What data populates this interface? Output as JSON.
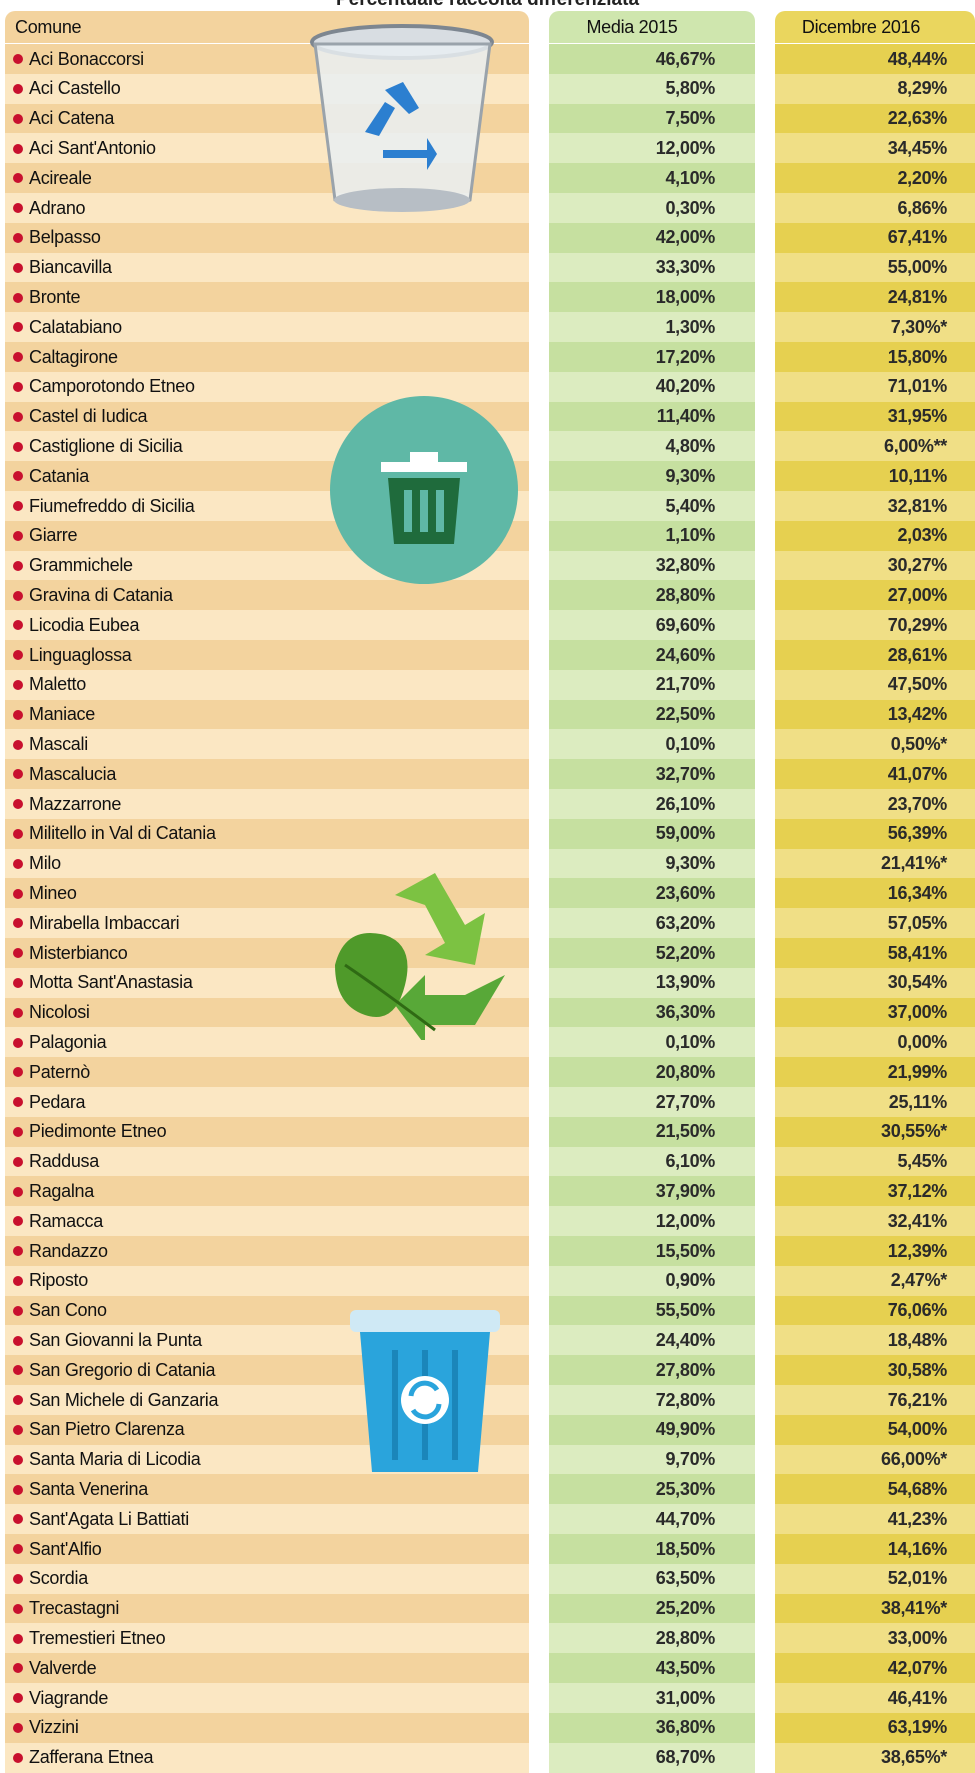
{
  "title": "Percentuale raccolta differenziata",
  "table": {
    "header": [
      "Comune",
      "Media 2015",
      "Dicembre 2016"
    ],
    "rows": [
      [
        "Aci Bonaccorsi",
        "46,67%",
        "48,44%"
      ],
      [
        "Aci Castello",
        "5,80%",
        "8,29%"
      ],
      [
        "Aci Catena",
        "7,50%",
        "22,63%"
      ],
      [
        "Aci Sant'Antonio",
        "12,00%",
        "34,45%"
      ],
      [
        "Acireale",
        "4,10%",
        "2,20%"
      ],
      [
        "Adrano",
        "0,30%",
        "6,86%"
      ],
      [
        "Belpasso",
        "42,00%",
        "67,41%"
      ],
      [
        "Biancavilla",
        "33,30%",
        "55,00%"
      ],
      [
        "Bronte",
        "18,00%",
        "24,81%"
      ],
      [
        "Calatabiano",
        "1,30%",
        "7,30%*"
      ],
      [
        "Caltagirone",
        "17,20%",
        "15,80%"
      ],
      [
        "Camporotondo Etneo",
        "40,20%",
        "71,01%"
      ],
      [
        "Castel di Iudica",
        "11,40%",
        "31,95%"
      ],
      [
        "Castiglione di Sicilia",
        "4,80%",
        "6,00%**"
      ],
      [
        "Catania",
        "9,30%",
        "10,11%"
      ],
      [
        "Fiumefreddo di Sicilia",
        "5,40%",
        "32,81%"
      ],
      [
        "Giarre",
        "1,10%",
        "2,03%"
      ],
      [
        "Grammichele",
        "32,80%",
        "30,27%"
      ],
      [
        "Gravina di Catania",
        "28,80%",
        "27,00%"
      ],
      [
        "Licodia Eubea",
        "69,60%",
        "70,29%"
      ],
      [
        "Linguaglossa",
        "24,60%",
        "28,61%"
      ],
      [
        "Maletto",
        "21,70%",
        "47,50%"
      ],
      [
        "Maniace",
        "22,50%",
        "13,42%"
      ],
      [
        "Mascali",
        "0,10%",
        "0,50%*"
      ],
      [
        "Mascalucia",
        "32,70%",
        "41,07%"
      ],
      [
        "Mazzarrone",
        "26,10%",
        "23,70%"
      ],
      [
        "Militello in Val di Catania",
        "59,00%",
        "56,39%"
      ],
      [
        "Milo",
        "9,30%",
        "21,41%*"
      ],
      [
        "Mineo",
        "23,60%",
        "16,34%"
      ],
      [
        "Mirabella Imbaccari",
        "63,20%",
        "57,05%"
      ],
      [
        "Misterbianco",
        "52,20%",
        "58,41%"
      ],
      [
        "Motta Sant'Anastasia",
        "13,90%",
        "30,54%"
      ],
      [
        "Nicolosi",
        "36,30%",
        "37,00%"
      ],
      [
        "Palagonia",
        "0,10%",
        "0,00%"
      ],
      [
        "Paternò",
        "20,80%",
        "21,99%"
      ],
      [
        "Pedara",
        "27,70%",
        "25,11%"
      ],
      [
        "Piedimonte Etneo",
        "21,50%",
        "30,55%*"
      ],
      [
        "Raddusa",
        "6,10%",
        "5,45%"
      ],
      [
        "Ragalna",
        "37,90%",
        "37,12%"
      ],
      [
        "Ramacca",
        "12,00%",
        "32,41%"
      ],
      [
        "Randazzo",
        "15,50%",
        "12,39%"
      ],
      [
        "Riposto",
        "0,90%",
        "2,47%*"
      ],
      [
        "San Cono",
        "55,50%",
        "76,06%"
      ],
      [
        "San Giovanni la Punta",
        "24,40%",
        "18,48%"
      ],
      [
        "San Gregorio di Catania",
        "27,80%",
        "30,58%"
      ],
      [
        "San Michele di Ganzaria",
        "72,80%",
        "76,21%"
      ],
      [
        "San Pietro Clarenza",
        "49,90%",
        "54,00%"
      ],
      [
        "Santa Maria di Licodia",
        "9,70%",
        "66,00%*"
      ],
      [
        "Santa Venerina",
        "25,30%",
        "54,68%"
      ],
      [
        "Sant'Agata Li Battiati",
        "44,70%",
        "41,23%"
      ],
      [
        "Sant'Alfio",
        "18,50%",
        "14,16%"
      ],
      [
        "Scordia",
        "63,50%",
        "52,01%"
      ],
      [
        "Trecastagni",
        "25,20%",
        "38,41%*"
      ],
      [
        "Tremestieri Etneo",
        "28,80%",
        "33,00%"
      ],
      [
        "Valverde",
        "43,50%",
        "42,07%"
      ],
      [
        "Viagrande",
        "31,00%",
        "46,41%"
      ],
      [
        "Vizzini",
        "36,80%",
        "63,19%"
      ],
      [
        "Zafferana Etnea",
        "68,70%",
        "38,65%*"
      ]
    ]
  }
}
